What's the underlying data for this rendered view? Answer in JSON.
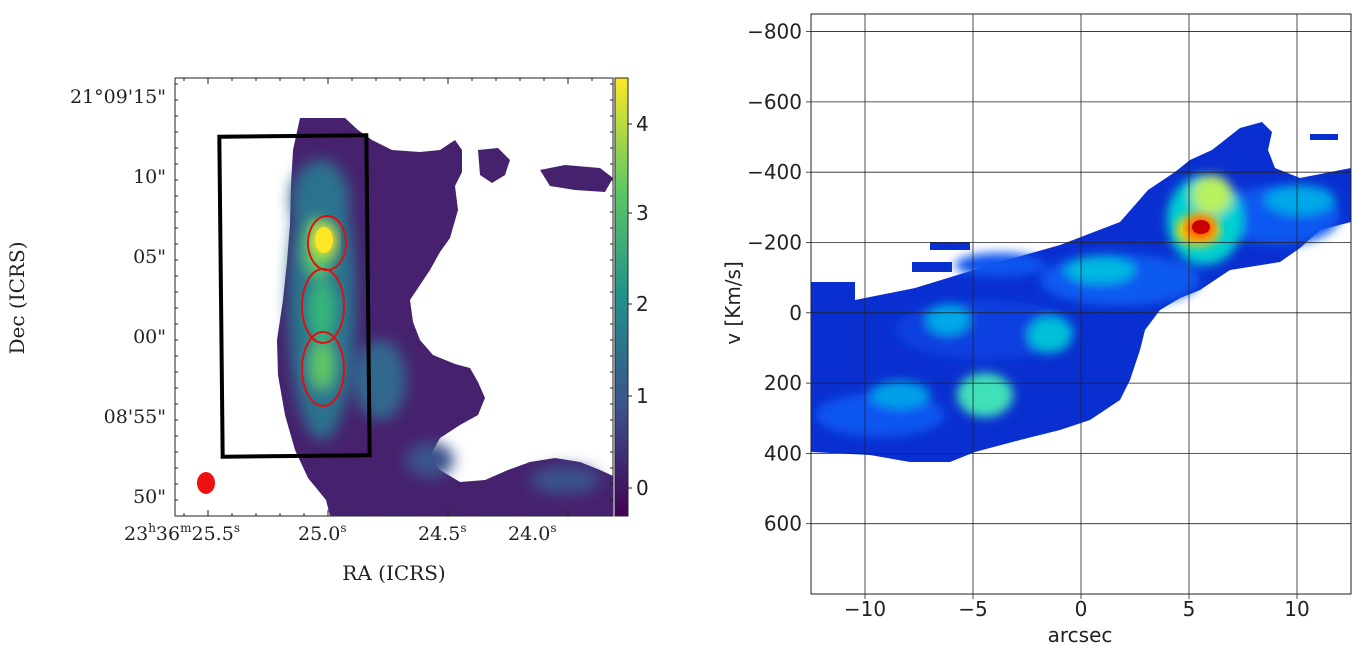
{
  "chart_data": [
    {
      "type": "heatmap",
      "subtype": "sky-image",
      "xlabel": "RA (ICRS)",
      "ylabel": "Dec (ICRS)",
      "x_ticks": [
        {
          "h": "23",
          "m": "36",
          "s": "25.5",
          "label": "23h36m25.5s"
        },
        {
          "s": "25.0",
          "label": "25.0s"
        },
        {
          "s": "24.5",
          "label": "24.5s"
        },
        {
          "s": "24.0",
          "label": "24.0s"
        }
      ],
      "y_ticks": [
        "21°09'15\"",
        "10\"",
        "05\"",
        "00\"",
        "08'55\"",
        "50\""
      ],
      "colorbar": {
        "colormap": "viridis",
        "range": [
          -0.3,
          4.5
        ],
        "ticks": [
          "4",
          "3",
          "2",
          "1",
          "0"
        ]
      },
      "overlays": [
        "black slit box",
        "three red ellipses",
        "red beam ellipse"
      ],
      "grid": false
    },
    {
      "type": "heatmap",
      "subtype": "position-velocity diagram",
      "xlabel": "arcsec",
      "ylabel": "v [Km/s]",
      "x_ticks": [
        "−10",
        "−5",
        "0",
        "5",
        "10"
      ],
      "y_ticks": [
        "−800",
        "−600",
        "−400",
        "−200",
        "0",
        "200",
        "400",
        "600"
      ],
      "xlim": [
        -12.5,
        12.5
      ],
      "ylim": [
        800,
        -850
      ],
      "colormap": "jet",
      "grid": true,
      "peak": {
        "x": 5.6,
        "v": -220
      }
    }
  ]
}
